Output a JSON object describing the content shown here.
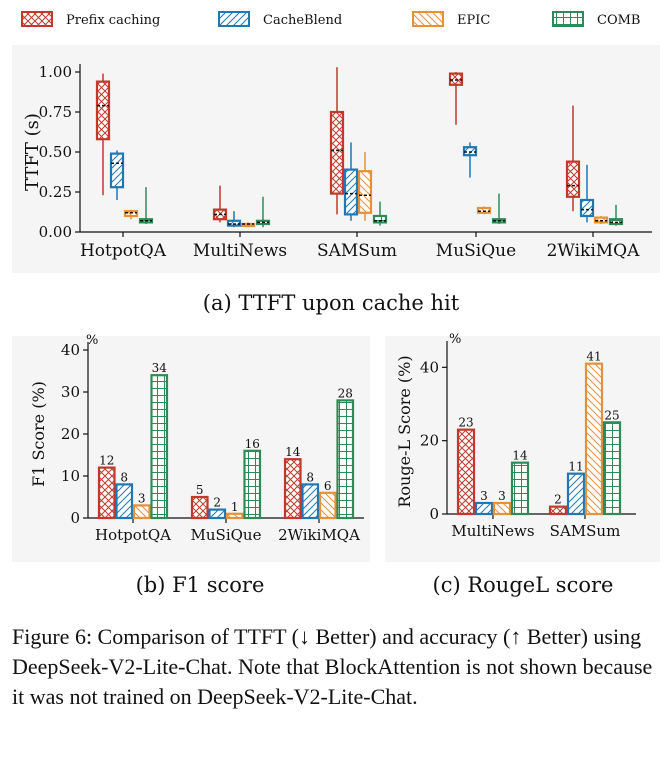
{
  "legend": [
    {
      "name": "Prefix caching",
      "color": "#c0392b",
      "hatch": "cross"
    },
    {
      "name": "CacheBlend",
      "color": "#1f77b4",
      "hatch": "slash"
    },
    {
      "name": "EPIC",
      "color": "#e69138",
      "hatch": "backslash"
    },
    {
      "name": "COMB",
      "color": "#2e8b57",
      "hatch": "grid"
    }
  ],
  "chart_data": [
    {
      "id": "a",
      "type": "box",
      "caption": "(a) TTFT upon cache hit",
      "ylabel": "TTFT (s)",
      "ylim": [
        0,
        1.0
      ],
      "yticks": [
        "0.00",
        "0.25",
        "0.50",
        "0.75",
        "1.00"
      ],
      "ytick_values": [
        0,
        0.25,
        0.5,
        0.75,
        1.0
      ],
      "categories": [
        "HotpotQA",
        "MultiNews",
        "SAMSum",
        "MuSiQue",
        "2WikiMQA"
      ],
      "series": [
        {
          "name": "Prefix caching",
          "boxes": [
            {
              "min": 0.23,
              "q1": 0.58,
              "median": 0.79,
              "q3": 0.94,
              "max": 0.99
            },
            {
              "min": 0.06,
              "q1": 0.08,
              "median": 0.11,
              "q3": 0.14,
              "max": 0.29
            },
            {
              "min": 0.11,
              "q1": 0.24,
              "median": 0.51,
              "q3": 0.75,
              "max": 1.03
            },
            {
              "min": 0.67,
              "q1": 0.92,
              "median": 0.95,
              "q3": 0.99,
              "max": 1.0
            },
            {
              "min": 0.13,
              "q1": 0.22,
              "median": 0.29,
              "q3": 0.44,
              "max": 0.79
            }
          ]
        },
        {
          "name": "CacheBlend",
          "boxes": [
            {
              "min": 0.2,
              "q1": 0.28,
              "median": 0.43,
              "q3": 0.49,
              "max": 0.51
            },
            {
              "min": 0.03,
              "q1": 0.04,
              "median": 0.05,
              "q3": 0.07,
              "max": 0.13
            },
            {
              "min": 0.07,
              "q1": 0.11,
              "median": 0.24,
              "q3": 0.39,
              "max": 0.56
            },
            {
              "min": 0.34,
              "q1": 0.48,
              "median": 0.5,
              "q3": 0.53,
              "max": 0.56
            },
            {
              "min": 0.06,
              "q1": 0.1,
              "median": 0.14,
              "q3": 0.2,
              "max": 0.42
            }
          ]
        },
        {
          "name": "EPIC",
          "boxes": [
            {
              "min": 0.08,
              "q1": 0.1,
              "median": 0.12,
              "q3": 0.13,
              "max": 0.14
            },
            {
              "min": 0.03,
              "q1": 0.04,
              "median": 0.05,
              "q3": 0.05,
              "max": 0.06
            },
            {
              "min": 0.07,
              "q1": 0.12,
              "median": 0.23,
              "q3": 0.38,
              "max": 0.5
            },
            {
              "min": 0.11,
              "q1": 0.12,
              "median": 0.13,
              "q3": 0.15,
              "max": 0.16
            },
            {
              "min": 0.05,
              "q1": 0.06,
              "median": 0.07,
              "q3": 0.09,
              "max": 0.1
            }
          ]
        },
        {
          "name": "COMB",
          "boxes": [
            {
              "min": 0.05,
              "q1": 0.06,
              "median": 0.07,
              "q3": 0.08,
              "max": 0.28
            },
            {
              "min": 0.03,
              "q1": 0.05,
              "median": 0.06,
              "q3": 0.07,
              "max": 0.22
            },
            {
              "min": 0.04,
              "q1": 0.06,
              "median": 0.07,
              "q3": 0.1,
              "max": 0.19
            },
            {
              "min": 0.05,
              "q1": 0.06,
              "median": 0.07,
              "q3": 0.08,
              "max": 0.24
            },
            {
              "min": 0.04,
              "q1": 0.05,
              "median": 0.06,
              "q3": 0.08,
              "max": 0.17
            }
          ]
        }
      ]
    },
    {
      "id": "b",
      "type": "bar",
      "caption": "(b) F1 score",
      "ylabel": "F1 Score (%)",
      "unit_label": "%",
      "ylim": [
        0,
        40
      ],
      "yticks": [
        "0",
        "10",
        "20",
        "30",
        "40"
      ],
      "ytick_values": [
        0,
        10,
        20,
        30,
        40
      ],
      "categories": [
        "HotpotQA",
        "MuSiQue",
        "2WikiMQA"
      ],
      "series": [
        {
          "name": "Prefix caching",
          "values": [
            12,
            5,
            14
          ],
          "labels": [
            "12",
            "5",
            "14"
          ]
        },
        {
          "name": "CacheBlend",
          "values": [
            8,
            2,
            8
          ],
          "labels": [
            "8",
            "2",
            "8"
          ]
        },
        {
          "name": "EPIC",
          "values": [
            3,
            1,
            6
          ],
          "labels": [
            "3",
            "1",
            "6"
          ]
        },
        {
          "name": "COMB",
          "values": [
            34,
            16,
            28
          ],
          "labels": [
            "34",
            "16",
            "28"
          ]
        }
      ]
    },
    {
      "id": "c",
      "type": "bar",
      "caption": "(c) RougeL score",
      "ylabel": "Rouge-L Score (%)",
      "unit_label": "%",
      "ylim": [
        0,
        45
      ],
      "yticks": [
        "0",
        "20",
        "40"
      ],
      "ytick_values": [
        0,
        20,
        40
      ],
      "categories": [
        "MultiNews",
        "SAMSum"
      ],
      "series": [
        {
          "name": "Prefix caching",
          "values": [
            23,
            2
          ],
          "labels": [
            "23",
            "2"
          ]
        },
        {
          "name": "CacheBlend",
          "values": [
            3,
            11
          ],
          "labels": [
            "3",
            "11"
          ]
        },
        {
          "name": "EPIC",
          "values": [
            3,
            41
          ],
          "labels": [
            "3",
            "41"
          ]
        },
        {
          "name": "COMB",
          "values": [
            14,
            25
          ],
          "labels": [
            "14",
            "25"
          ]
        }
      ]
    }
  ],
  "figure_caption": "Figure 6: Comparison of TTFT (↓ Better) and accuracy (↑ Better) using DeepSeek-V2-Lite-Chat. Note that BlockAttention is not shown because it was not trained on DeepSeek-V2-Lite-Chat."
}
